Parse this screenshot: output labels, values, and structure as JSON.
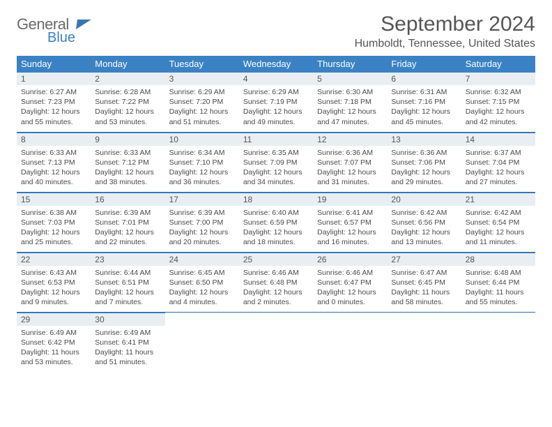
{
  "brand": {
    "line1": "General",
    "line2": "Blue"
  },
  "title": "September 2024",
  "location": "Humboldt, Tennessee, United States",
  "colors": {
    "header_bg": "#3b82c4",
    "row_divider": "#2f6ea8",
    "daynum_bg": "#e9eef2",
    "text": "#4a4a4a",
    "title_text": "#555555"
  },
  "fonts": {
    "title_pt": 30,
    "location_pt": 16,
    "dayhead_pt": 13,
    "body_pt": 10.5
  },
  "daysOfWeek": [
    "Sunday",
    "Monday",
    "Tuesday",
    "Wednesday",
    "Thursday",
    "Friday",
    "Saturday"
  ],
  "days": [
    {
      "n": "1",
      "sunrise": "Sunrise: 6:27 AM",
      "sunset": "Sunset: 7:23 PM",
      "daylight": "Daylight: 12 hours and 55 minutes."
    },
    {
      "n": "2",
      "sunrise": "Sunrise: 6:28 AM",
      "sunset": "Sunset: 7:22 PM",
      "daylight": "Daylight: 12 hours and 53 minutes."
    },
    {
      "n": "3",
      "sunrise": "Sunrise: 6:29 AM",
      "sunset": "Sunset: 7:20 PM",
      "daylight": "Daylight: 12 hours and 51 minutes."
    },
    {
      "n": "4",
      "sunrise": "Sunrise: 6:29 AM",
      "sunset": "Sunset: 7:19 PM",
      "daylight": "Daylight: 12 hours and 49 minutes."
    },
    {
      "n": "5",
      "sunrise": "Sunrise: 6:30 AM",
      "sunset": "Sunset: 7:18 PM",
      "daylight": "Daylight: 12 hours and 47 minutes."
    },
    {
      "n": "6",
      "sunrise": "Sunrise: 6:31 AM",
      "sunset": "Sunset: 7:16 PM",
      "daylight": "Daylight: 12 hours and 45 minutes."
    },
    {
      "n": "7",
      "sunrise": "Sunrise: 6:32 AM",
      "sunset": "Sunset: 7:15 PM",
      "daylight": "Daylight: 12 hours and 42 minutes."
    },
    {
      "n": "8",
      "sunrise": "Sunrise: 6:33 AM",
      "sunset": "Sunset: 7:13 PM",
      "daylight": "Daylight: 12 hours and 40 minutes."
    },
    {
      "n": "9",
      "sunrise": "Sunrise: 6:33 AM",
      "sunset": "Sunset: 7:12 PM",
      "daylight": "Daylight: 12 hours and 38 minutes."
    },
    {
      "n": "10",
      "sunrise": "Sunrise: 6:34 AM",
      "sunset": "Sunset: 7:10 PM",
      "daylight": "Daylight: 12 hours and 36 minutes."
    },
    {
      "n": "11",
      "sunrise": "Sunrise: 6:35 AM",
      "sunset": "Sunset: 7:09 PM",
      "daylight": "Daylight: 12 hours and 34 minutes."
    },
    {
      "n": "12",
      "sunrise": "Sunrise: 6:36 AM",
      "sunset": "Sunset: 7:07 PM",
      "daylight": "Daylight: 12 hours and 31 minutes."
    },
    {
      "n": "13",
      "sunrise": "Sunrise: 6:36 AM",
      "sunset": "Sunset: 7:06 PM",
      "daylight": "Daylight: 12 hours and 29 minutes."
    },
    {
      "n": "14",
      "sunrise": "Sunrise: 6:37 AM",
      "sunset": "Sunset: 7:04 PM",
      "daylight": "Daylight: 12 hours and 27 minutes."
    },
    {
      "n": "15",
      "sunrise": "Sunrise: 6:38 AM",
      "sunset": "Sunset: 7:03 PM",
      "daylight": "Daylight: 12 hours and 25 minutes."
    },
    {
      "n": "16",
      "sunrise": "Sunrise: 6:39 AM",
      "sunset": "Sunset: 7:01 PM",
      "daylight": "Daylight: 12 hours and 22 minutes."
    },
    {
      "n": "17",
      "sunrise": "Sunrise: 6:39 AM",
      "sunset": "Sunset: 7:00 PM",
      "daylight": "Daylight: 12 hours and 20 minutes."
    },
    {
      "n": "18",
      "sunrise": "Sunrise: 6:40 AM",
      "sunset": "Sunset: 6:59 PM",
      "daylight": "Daylight: 12 hours and 18 minutes."
    },
    {
      "n": "19",
      "sunrise": "Sunrise: 6:41 AM",
      "sunset": "Sunset: 6:57 PM",
      "daylight": "Daylight: 12 hours and 16 minutes."
    },
    {
      "n": "20",
      "sunrise": "Sunrise: 6:42 AM",
      "sunset": "Sunset: 6:56 PM",
      "daylight": "Daylight: 12 hours and 13 minutes."
    },
    {
      "n": "21",
      "sunrise": "Sunrise: 6:42 AM",
      "sunset": "Sunset: 6:54 PM",
      "daylight": "Daylight: 12 hours and 11 minutes."
    },
    {
      "n": "22",
      "sunrise": "Sunrise: 6:43 AM",
      "sunset": "Sunset: 6:53 PM",
      "daylight": "Daylight: 12 hours and 9 minutes."
    },
    {
      "n": "23",
      "sunrise": "Sunrise: 6:44 AM",
      "sunset": "Sunset: 6:51 PM",
      "daylight": "Daylight: 12 hours and 7 minutes."
    },
    {
      "n": "24",
      "sunrise": "Sunrise: 6:45 AM",
      "sunset": "Sunset: 6:50 PM",
      "daylight": "Daylight: 12 hours and 4 minutes."
    },
    {
      "n": "25",
      "sunrise": "Sunrise: 6:46 AM",
      "sunset": "Sunset: 6:48 PM",
      "daylight": "Daylight: 12 hours and 2 minutes."
    },
    {
      "n": "26",
      "sunrise": "Sunrise: 6:46 AM",
      "sunset": "Sunset: 6:47 PM",
      "daylight": "Daylight: 12 hours and 0 minutes."
    },
    {
      "n": "27",
      "sunrise": "Sunrise: 6:47 AM",
      "sunset": "Sunset: 6:45 PM",
      "daylight": "Daylight: 11 hours and 58 minutes."
    },
    {
      "n": "28",
      "sunrise": "Sunrise: 6:48 AM",
      "sunset": "Sunset: 6:44 PM",
      "daylight": "Daylight: 11 hours and 55 minutes."
    },
    {
      "n": "29",
      "sunrise": "Sunrise: 6:49 AM",
      "sunset": "Sunset: 6:42 PM",
      "daylight": "Daylight: 11 hours and 53 minutes."
    },
    {
      "n": "30",
      "sunrise": "Sunrise: 6:49 AM",
      "sunset": "Sunset: 6:41 PM",
      "daylight": "Daylight: 11 hours and 51 minutes."
    }
  ]
}
